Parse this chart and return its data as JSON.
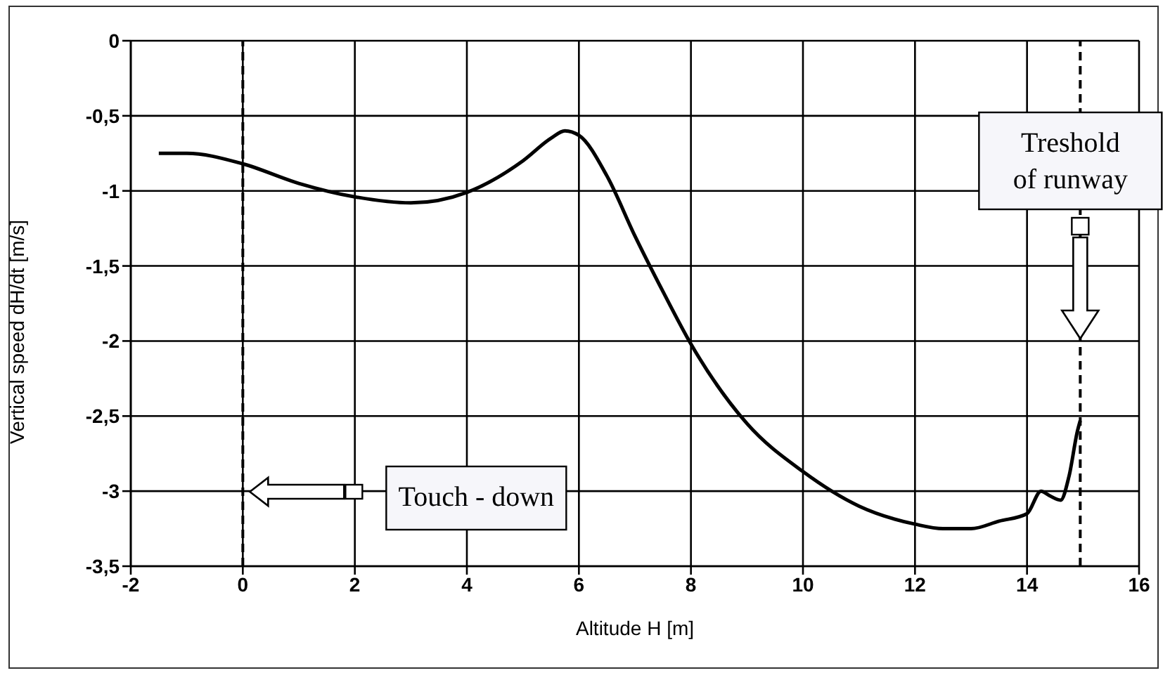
{
  "chart_data": {
    "type": "line",
    "xlabel": "Altitude H [m]",
    "ylabel": "Vertical speed dH/dt [m/s]",
    "x": [
      -1.5,
      -1,
      0,
      1,
      2,
      3,
      4,
      5,
      5.5,
      5.75,
      6,
      6.5,
      7,
      7.5,
      8,
      9,
      10,
      11,
      12,
      12.5,
      13,
      13.5,
      14,
      14.25,
      14.4,
      14.6,
      14.75,
      14.9,
      14.95
    ],
    "series": [
      {
        "color": "#000000",
        "values": [
          -0.75,
          -0.75,
          -0.82,
          -0.95,
          -1.04,
          -1.08,
          -1.01,
          -0.8,
          -0.65,
          -0.6,
          -0.63,
          -0.9,
          -1.3,
          -1.67,
          -2.02,
          -2.55,
          -2.87,
          -3.1,
          -3.22,
          -3.25,
          -3.25,
          -3.2,
          -3.15,
          -3.0,
          -3.03,
          -3.06,
          -2.9,
          -2.6,
          -2.53
        ]
      }
    ],
    "xlim": [
      -2,
      16
    ],
    "xticks": [
      -2,
      0,
      2,
      4,
      6,
      8,
      10,
      12,
      14,
      16
    ],
    "ylim": [
      -3.5,
      0
    ],
    "yticks": [
      {
        "value": -3.5,
        "label": "-3,5"
      },
      {
        "value": -3,
        "label": "-3"
      },
      {
        "value": -2.5,
        "label": "-2,5"
      },
      {
        "value": -2,
        "label": "-2"
      },
      {
        "value": -1.5,
        "label": "-1,5"
      },
      {
        "value": -1,
        "label": "-1"
      },
      {
        "value": -0.5,
        "label": "-0,5"
      },
      {
        "value": 0,
        "label": "0"
      }
    ],
    "grid": true,
    "marker": "none",
    "line_style": "solid",
    "ref_lines": [
      {
        "axis": "x",
        "value": 0,
        "line_style": "dashed",
        "color": "#000000"
      },
      {
        "axis": "x",
        "value": 14.95,
        "line_style": "dashed",
        "color": "#000000"
      }
    ],
    "annotations": [
      "Touch - down",
      "Treshold of runway"
    ]
  }
}
